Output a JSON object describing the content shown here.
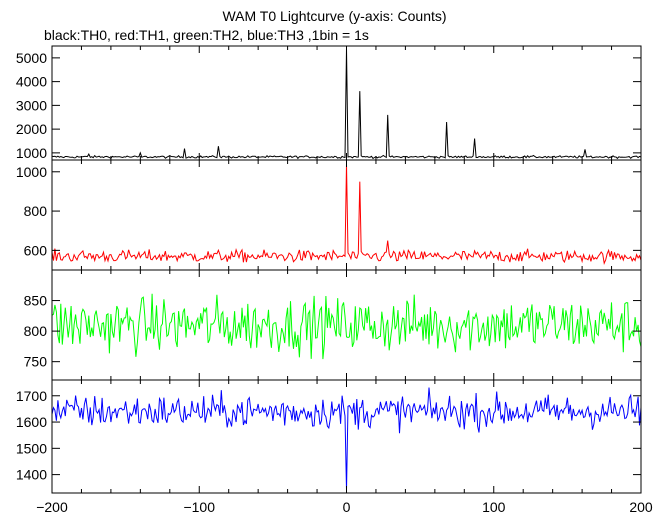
{
  "chart_data": {
    "type": "line",
    "title": "WAM T0 Lightcurve (y-axis: Counts)",
    "subtitle": "black:TH0, red:TH1, green:TH2, blue:TH3 ,1bin = 1s",
    "xlim": [
      -200,
      200
    ],
    "x_ticks": [
      -200,
      -100,
      0,
      100,
      200
    ],
    "x_tick_labels": [
      "−200",
      "−100",
      "0",
      "100",
      "200"
    ],
    "grid": false,
    "panels": [
      {
        "series": "TH0",
        "color": "#000000",
        "ylim": [
          700,
          5500
        ],
        "y_ticks": [
          1000,
          2000,
          3000,
          4000,
          5000
        ],
        "baseline": 830,
        "noise": 35,
        "peaks": [
          {
            "x": -175,
            "y": 950
          },
          {
            "x": -140,
            "y": 1000
          },
          {
            "x": -110,
            "y": 1180
          },
          {
            "x": -87,
            "y": 1280
          },
          {
            "x": 0,
            "y": 5400
          },
          {
            "x": 9,
            "y": 3600
          },
          {
            "x": 28,
            "y": 2600
          },
          {
            "x": 68,
            "y": 2300
          },
          {
            "x": 87,
            "y": 1600
          },
          {
            "x": 162,
            "y": 1150
          }
        ]
      },
      {
        "series": "TH1",
        "color": "#ff0000",
        "ylim": [
          500,
          1060
        ],
        "y_ticks": [
          600,
          800,
          1000
        ],
        "baseline": 570,
        "noise": 22,
        "peaks": [
          {
            "x": 0,
            "y": 1040
          },
          {
            "x": 9,
            "y": 950
          },
          {
            "x": 28,
            "y": 650
          }
        ]
      },
      {
        "series": "TH2",
        "color": "#00ff00",
        "ylim": [
          720,
          900
        ],
        "y_ticks": [
          750,
          800,
          850
        ],
        "baseline": 810,
        "noise": 32,
        "peaks": []
      },
      {
        "series": "TH3",
        "color": "#0000ff",
        "ylim": [
          1330,
          1760
        ],
        "y_ticks": [
          1400,
          1500,
          1600,
          1700
        ],
        "baseline": 1640,
        "noise": 45,
        "peaks": [
          {
            "x": 0,
            "y": 1340
          }
        ]
      }
    ]
  }
}
